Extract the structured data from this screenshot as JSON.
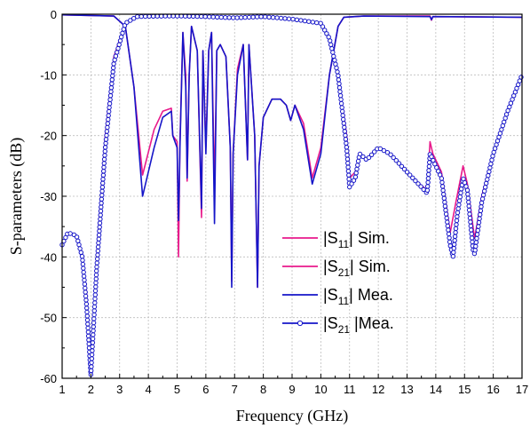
{
  "chart_data": {
    "type": "line",
    "xlabel": "Frequency (GHz)",
    "ylabel": "S-parameters (dB)",
    "xlim": [
      1,
      17
    ],
    "ylim": [
      -60,
      0
    ],
    "x_ticks": [
      "1",
      "2",
      "3",
      "4",
      "5",
      "6",
      "7",
      "8",
      "9",
      "10",
      "11",
      "12",
      "13",
      "14",
      "15",
      "16",
      "17"
    ],
    "y_ticks": [
      "0",
      "-10",
      "-20",
      "-30",
      "-40",
      "-50",
      "-60"
    ],
    "grid": true,
    "legend_placement": "bottom-right",
    "series": [
      {
        "name": "|S11| Sim.",
        "label_main": "|S",
        "label_sub": "11",
        "label_rest": "| Sim.",
        "color": "#e8198b",
        "marker": "none",
        "points": [
          [
            1.0,
            -0.1
          ],
          [
            2.8,
            -0.3
          ],
          [
            3.2,
            -2
          ],
          [
            3.5,
            -12
          ],
          [
            3.8,
            -26.5
          ],
          [
            4.2,
            -19
          ],
          [
            4.5,
            -16
          ],
          [
            4.8,
            -15.5
          ],
          [
            4.85,
            -20
          ],
          [
            5.0,
            -21
          ],
          [
            5.05,
            -40
          ],
          [
            5.1,
            -21
          ],
          [
            5.2,
            -3
          ],
          [
            5.3,
            -10
          ],
          [
            5.35,
            -27.5
          ],
          [
            5.42,
            -10
          ],
          [
            5.5,
            -2
          ],
          [
            5.7,
            -6
          ],
          [
            5.85,
            -33.5
          ],
          [
            5.9,
            -6
          ],
          [
            6.0,
            -22
          ],
          [
            6.1,
            -6
          ],
          [
            6.2,
            -3
          ],
          [
            6.3,
            -29
          ],
          [
            6.38,
            -6
          ],
          [
            6.5,
            -5
          ],
          [
            6.7,
            -7
          ],
          [
            6.85,
            -22
          ],
          [
            6.9,
            -44
          ],
          [
            6.95,
            -23
          ],
          [
            7.1,
            -9
          ],
          [
            7.3,
            -5
          ],
          [
            7.45,
            -24
          ],
          [
            7.5,
            -5
          ],
          [
            7.7,
            -20
          ],
          [
            7.8,
            -45
          ],
          [
            7.85,
            -25
          ],
          [
            8.0,
            -17
          ],
          [
            8.3,
            -14
          ],
          [
            8.6,
            -14
          ],
          [
            8.8,
            -15
          ],
          [
            8.95,
            -17.5
          ],
          [
            9.1,
            -15
          ],
          [
            9.4,
            -18
          ],
          [
            9.7,
            -27
          ],
          [
            10.0,
            -22
          ],
          [
            10.3,
            -10
          ],
          [
            10.6,
            -2
          ],
          [
            10.8,
            -0.5
          ],
          [
            11.5,
            -0.3
          ],
          [
            13.8,
            -0.3
          ],
          [
            13.85,
            -1
          ],
          [
            13.9,
            -0.4
          ],
          [
            17.0,
            -0.5
          ]
        ]
      },
      {
        "name": "|S21| Sim.",
        "label_main": "|S",
        "label_sub": "21",
        "label_rest": "| Sim.",
        "color": "#e8198b",
        "marker": "none",
        "points": [
          [
            1.0,
            -38
          ],
          [
            1.2,
            -36
          ],
          [
            1.5,
            -36.5
          ],
          [
            1.7,
            -40
          ],
          [
            1.85,
            -46
          ],
          [
            2.0,
            -59
          ],
          [
            2.2,
            -40
          ],
          [
            2.5,
            -20
          ],
          [
            2.8,
            -7
          ],
          [
            3.2,
            -1.5
          ],
          [
            3.6,
            -0.4
          ],
          [
            4.6,
            -0.3
          ],
          [
            5.0,
            -0.3
          ],
          [
            6.0,
            -0.4
          ],
          [
            7.0,
            -0.5
          ],
          [
            8.0,
            -0.4
          ],
          [
            9.0,
            -0.8
          ],
          [
            10.0,
            -1.5
          ],
          [
            10.3,
            -4
          ],
          [
            10.6,
            -10
          ],
          [
            10.9,
            -20
          ],
          [
            11.0,
            -27
          ],
          [
            11.2,
            -26
          ],
          [
            11.35,
            -23
          ],
          [
            11.6,
            -24
          ],
          [
            12.0,
            -22
          ],
          [
            12.4,
            -23
          ],
          [
            12.8,
            -25
          ],
          [
            13.2,
            -27
          ],
          [
            13.7,
            -29
          ],
          [
            13.8,
            -21
          ],
          [
            13.9,
            -23
          ],
          [
            14.2,
            -26
          ],
          [
            14.5,
            -36
          ],
          [
            14.7,
            -31
          ],
          [
            14.95,
            -25
          ],
          [
            15.1,
            -28
          ],
          [
            15.35,
            -37
          ],
          [
            15.6,
            -30
          ],
          [
            16.0,
            -23
          ],
          [
            16.5,
            -16
          ],
          [
            17.0,
            -10
          ]
        ]
      },
      {
        "name": "|S11| Mea.",
        "label_main": "|S",
        "label_sub": "11",
        "label_rest": "| Mea.",
        "color": "#1515c8",
        "marker": "none",
        "points": [
          [
            1.0,
            -0.1
          ],
          [
            2.8,
            -0.3
          ],
          [
            3.2,
            -2
          ],
          [
            3.5,
            -12
          ],
          [
            3.8,
            -30
          ],
          [
            4.2,
            -22
          ],
          [
            4.5,
            -17
          ],
          [
            4.8,
            -16
          ],
          [
            4.85,
            -20
          ],
          [
            5.0,
            -22
          ],
          [
            5.05,
            -34
          ],
          [
            5.1,
            -22
          ],
          [
            5.2,
            -3
          ],
          [
            5.3,
            -12
          ],
          [
            5.35,
            -27
          ],
          [
            5.42,
            -10
          ],
          [
            5.5,
            -2
          ],
          [
            5.7,
            -6
          ],
          [
            5.85,
            -32
          ],
          [
            5.9,
            -6
          ],
          [
            6.0,
            -23
          ],
          [
            6.1,
            -6
          ],
          [
            6.2,
            -3
          ],
          [
            6.3,
            -34.5
          ],
          [
            6.38,
            -6
          ],
          [
            6.5,
            -5
          ],
          [
            6.7,
            -7
          ],
          [
            6.85,
            -22
          ],
          [
            6.9,
            -45
          ],
          [
            6.95,
            -23
          ],
          [
            7.1,
            -10
          ],
          [
            7.3,
            -5
          ],
          [
            7.45,
            -24
          ],
          [
            7.5,
            -5
          ],
          [
            7.7,
            -20
          ],
          [
            7.8,
            -45
          ],
          [
            7.85,
            -25
          ],
          [
            8.0,
            -17
          ],
          [
            8.3,
            -14
          ],
          [
            8.6,
            -14
          ],
          [
            8.8,
            -15
          ],
          [
            8.95,
            -17.5
          ],
          [
            9.1,
            -15
          ],
          [
            9.4,
            -19
          ],
          [
            9.7,
            -28
          ],
          [
            10.0,
            -23
          ],
          [
            10.3,
            -10
          ],
          [
            10.6,
            -2
          ],
          [
            10.8,
            -0.5
          ],
          [
            11.5,
            -0.3
          ],
          [
            13.8,
            -0.4
          ],
          [
            13.85,
            -0.9
          ],
          [
            13.9,
            -0.4
          ],
          [
            17.0,
            -0.5
          ]
        ]
      },
      {
        "name": "|S21| Mea.",
        "label_main": "|S",
        "label_sub": "21",
        "label_rest": " |Mea.",
        "color": "#1515c8",
        "marker": "circle",
        "points": [
          [
            1.0,
            -38
          ],
          [
            1.2,
            -36
          ],
          [
            1.5,
            -36.5
          ],
          [
            1.7,
            -40
          ],
          [
            1.85,
            -48
          ],
          [
            2.0,
            -59.5
          ],
          [
            2.2,
            -42
          ],
          [
            2.5,
            -22
          ],
          [
            2.8,
            -8
          ],
          [
            3.2,
            -1.5
          ],
          [
            3.6,
            -0.4
          ],
          [
            4.6,
            -0.3
          ],
          [
            5.0,
            -0.3
          ],
          [
            6.0,
            -0.4
          ],
          [
            7.0,
            -0.6
          ],
          [
            8.0,
            -0.4
          ],
          [
            9.0,
            -0.8
          ],
          [
            10.0,
            -1.5
          ],
          [
            10.3,
            -4
          ],
          [
            10.6,
            -10
          ],
          [
            10.9,
            -22
          ],
          [
            11.0,
            -28.5
          ],
          [
            11.2,
            -27
          ],
          [
            11.35,
            -23
          ],
          [
            11.6,
            -24
          ],
          [
            12.0,
            -22
          ],
          [
            12.4,
            -23
          ],
          [
            12.8,
            -25
          ],
          [
            13.2,
            -27
          ],
          [
            13.7,
            -29.5
          ],
          [
            13.8,
            -23
          ],
          [
            13.9,
            -24
          ],
          [
            14.2,
            -27
          ],
          [
            14.5,
            -38
          ],
          [
            14.6,
            -40
          ],
          [
            14.75,
            -33
          ],
          [
            14.95,
            -27
          ],
          [
            15.1,
            -29
          ],
          [
            15.3,
            -39
          ],
          [
            15.35,
            -39.5
          ],
          [
            15.6,
            -31
          ],
          [
            16.0,
            -23
          ],
          [
            16.5,
            -16
          ],
          [
            17.0,
            -10
          ]
        ]
      }
    ]
  }
}
